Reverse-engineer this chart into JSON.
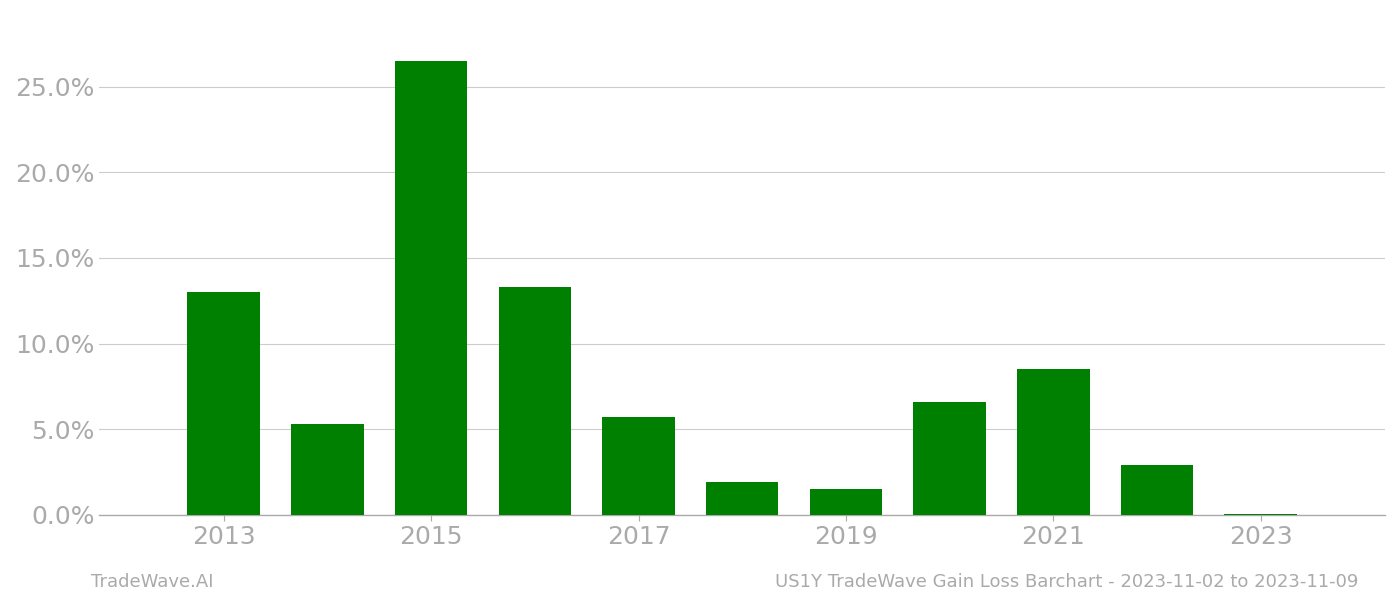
{
  "years": [
    2013,
    2014,
    2015,
    2016,
    2017,
    2018,
    2019,
    2020,
    2021,
    2022,
    2023
  ],
  "values": [
    0.13,
    0.053,
    0.265,
    0.133,
    0.057,
    0.019,
    0.015,
    0.066,
    0.085,
    0.029,
    0.0005
  ],
  "bar_color": "#008000",
  "background_color": "#ffffff",
  "grid_color": "#cccccc",
  "axis_label_color": "#aaaaaa",
  "tick_label_color": "#aaaaaa",
  "ylabel_ticks": [
    0.0,
    0.05,
    0.1,
    0.15,
    0.2,
    0.25
  ],
  "ylim": [
    0,
    0.285
  ],
  "xtick_years": [
    2013,
    2015,
    2017,
    2019,
    2021,
    2023
  ],
  "xlim": [
    2011.8,
    2024.2
  ],
  "footer_left": "TradeWave.AI",
  "footer_right": "US1Y TradeWave Gain Loss Barchart - 2023-11-02 to 2023-11-09",
  "footer_color": "#aaaaaa",
  "bar_width": 0.7,
  "tick_fontsize": 18,
  "footer_fontsize": 13,
  "figsize": [
    14.0,
    6.0
  ],
  "dpi": 100
}
